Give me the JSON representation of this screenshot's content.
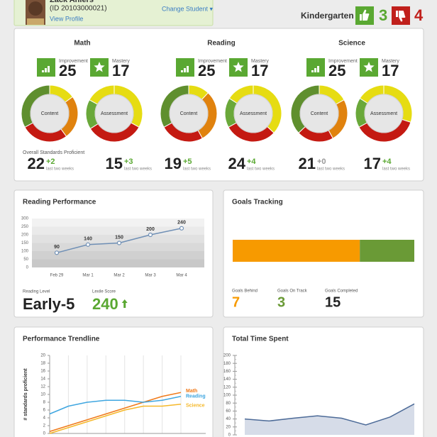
{
  "student": {
    "name": "Zack Ahlers",
    "id": "(ID 20103000021)",
    "view_profile": "View Profile",
    "change_student": "Change Student ▾"
  },
  "grade": "Kindergarten",
  "thumbs_up": 3,
  "thumbs_down": 4,
  "subjects": {
    "overall_label": "Overall Standards Proficient",
    "items": [
      {
        "title": "Math",
        "improvement_label": "Improvement",
        "improvement": 25,
        "mastery_label": "Mastery",
        "mastery": 17,
        "donuts": [
          {
            "label": "Content",
            "segments": [
              {
                "color": "#e6dc12",
                "value": 15
              },
              {
                "color": "#e0820e",
                "value": 25
              },
              {
                "color": "#c41a12",
                "value": 27
              },
              {
                "color": "#5f8f2e",
                "value": 33
              }
            ]
          },
          {
            "label": "Assessment",
            "segments": [
              {
                "color": "#e6dc12",
                "value": 33
              },
              {
                "color": "#c41a12",
                "value": 33
              },
              {
                "color": "#6aa83a",
                "value": 17
              },
              {
                "color": "#e6dc12",
                "value": 17
              }
            ]
          }
        ],
        "stats": [
          {
            "value": 22,
            "change": "+2",
            "note": "last two weeks"
          },
          {
            "value": 15,
            "change": "+3",
            "note": "last two weeks"
          }
        ]
      },
      {
        "title": "Reading",
        "improvement_label": "Improvement",
        "improvement": 25,
        "mastery_label": "Mastery",
        "mastery": 17,
        "donuts": [
          {
            "label": "Content",
            "segments": [
              {
                "color": "#e6dc12",
                "value": 12
              },
              {
                "color": "#e0820e",
                "value": 30
              },
              {
                "color": "#c41a12",
                "value": 25
              },
              {
                "color": "#5f8f2e",
                "value": 33
              }
            ]
          },
          {
            "label": "Assessment",
            "segments": [
              {
                "color": "#e6dc12",
                "value": 37
              },
              {
                "color": "#c41a12",
                "value": 30
              },
              {
                "color": "#6aa83a",
                "value": 17
              },
              {
                "color": "#e6dc12",
                "value": 16
              }
            ]
          }
        ],
        "stats": [
          {
            "value": 19,
            "change": "+5",
            "note": "last two weeks"
          },
          {
            "value": 24,
            "change": "+4",
            "note": "last two weeks"
          }
        ]
      },
      {
        "title": "Science",
        "improvement_label": "Improvement",
        "improvement": 25,
        "mastery_label": "Mastery",
        "mastery": 17,
        "donuts": [
          {
            "label": "Content",
            "segments": [
              {
                "color": "#e6dc12",
                "value": 17
              },
              {
                "color": "#e0820e",
                "value": 25
              },
              {
                "color": "#c41a12",
                "value": 21
              },
              {
                "color": "#5f8f2e",
                "value": 37
              }
            ]
          },
          {
            "label": "Assessment",
            "segments": [
              {
                "color": "#e6dc12",
                "value": 30
              },
              {
                "color": "#c41a12",
                "value": 37
              },
              {
                "color": "#6aa83a",
                "value": 17
              },
              {
                "color": "#e6dc12",
                "value": 16
              }
            ]
          }
        ],
        "stats": [
          {
            "value": 21,
            "change": "+0",
            "note": "last two weeks"
          },
          {
            "value": 17,
            "change": "+4",
            "note": "last two weeks"
          }
        ]
      }
    ]
  },
  "reading_performance": {
    "title": "Reading Performance",
    "chart_data": {
      "type": "line",
      "categories": [
        "Feb 29",
        "Mar 1",
        "Mar 2",
        "Mar 3",
        "Mar 4"
      ],
      "values": [
        90,
        140,
        150,
        200,
        240
      ],
      "color": "#6f8fb5",
      "ylim": [
        0,
        300
      ],
      "yticks": [
        0,
        50,
        100,
        150,
        200,
        250,
        300
      ]
    },
    "reading_level_label": "Reading Level",
    "reading_level": "Early-5",
    "lexile_label": "Lexile Score",
    "lexile": 240
  },
  "goals": {
    "title": "Goals Tracking",
    "chart_data": {
      "type": "bar",
      "orientation": "horizontal",
      "stacked": true,
      "series": [
        {
          "name": "Goals Behind",
          "color": "#f79a00",
          "values": [
            7
          ]
        },
        {
          "name": "Goals On Track",
          "color": "#6a9a36",
          "values": [
            3
          ]
        }
      ]
    },
    "completed_label": "Goals Completed",
    "completed": 15
  },
  "trendline": {
    "title": "Performance Trendline",
    "chart_data": {
      "type": "line",
      "y_label": "# standards proficient",
      "categories": [
        null,
        null,
        null,
        null,
        null,
        null,
        null,
        null
      ],
      "series": [
        {
          "name": "Math",
          "color": "#f07a1a",
          "values": [
            0.5,
            2,
            3.5,
            5,
            6.5,
            8,
            9.5,
            10.5
          ]
        },
        {
          "name": "Reading",
          "color": "#3fa6e0",
          "values": [
            5,
            7,
            8,
            8.5,
            8.5,
            8,
            8.5,
            9.5
          ]
        },
        {
          "name": "Science",
          "color": "#f5b82a",
          "values": [
            0,
            1.5,
            3,
            4.5,
            6,
            7,
            7,
            7.5
          ]
        }
      ],
      "ylim": [
        0,
        20
      ],
      "yticks": [
        0,
        2,
        4,
        6,
        8,
        10,
        12,
        14,
        16,
        18,
        20
      ]
    }
  },
  "time_spent": {
    "title": "Total Time Spent",
    "chart_data": {
      "type": "area",
      "categories": [
        null,
        null,
        null,
        null,
        null,
        null,
        null,
        null
      ],
      "values": [
        40,
        35,
        42,
        48,
        42,
        25,
        45,
        78
      ],
      "color": "#4d6b98",
      "ylim": [
        0,
        200
      ],
      "yticks": [
        0,
        20,
        40,
        60,
        80,
        100,
        120,
        140,
        160,
        180,
        200
      ]
    }
  }
}
